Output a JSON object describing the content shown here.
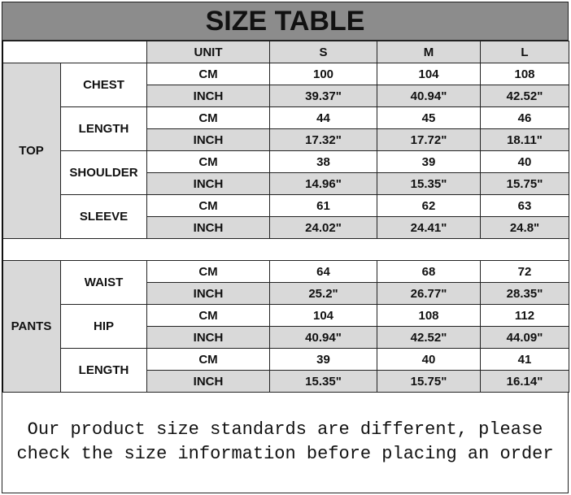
{
  "title": "SIZE TABLE",
  "header": {
    "unit": "UNIT",
    "sizes": [
      "S",
      "M",
      "L"
    ]
  },
  "units": {
    "cm": "CM",
    "inch": "INCH"
  },
  "sections": [
    {
      "category": "TOP",
      "measures": [
        {
          "name": "CHEST",
          "cm": [
            "100",
            "104",
            "108"
          ],
          "inch": [
            "39.37\"",
            "40.94\"",
            "42.52\""
          ]
        },
        {
          "name": "LENGTH",
          "cm": [
            "44",
            "45",
            "46"
          ],
          "inch": [
            "17.32\"",
            "17.72\"",
            "18.11\""
          ]
        },
        {
          "name": "SHOULDER",
          "cm": [
            "38",
            "39",
            "40"
          ],
          "inch": [
            "14.96\"",
            "15.35\"",
            "15.75\""
          ]
        },
        {
          "name": "SLEEVE",
          "cm": [
            "61",
            "62",
            "63"
          ],
          "inch": [
            "24.02\"",
            "24.41\"",
            "24.8\""
          ]
        }
      ]
    },
    {
      "category": "PANTS",
      "measures": [
        {
          "name": "WAIST",
          "cm": [
            "64",
            "68",
            "72"
          ],
          "inch": [
            "25.2\"",
            "26.77\"",
            "28.35\""
          ]
        },
        {
          "name": "HIP",
          "cm": [
            "104",
            "108",
            "112"
          ],
          "inch": [
            "40.94\"",
            "42.52\"",
            "44.09\""
          ]
        },
        {
          "name": "LENGTH",
          "cm": [
            "39",
            "40",
            "41"
          ],
          "inch": [
            "15.35\"",
            "15.75\"",
            "16.14\""
          ]
        }
      ]
    }
  ],
  "footer": {
    "line1": "Our product size standards are different, please",
    "line2": "check the size information before placing an order"
  },
  "colors": {
    "title_bg": "#8c8c8c",
    "cell_gray": "#d9d9d9"
  }
}
